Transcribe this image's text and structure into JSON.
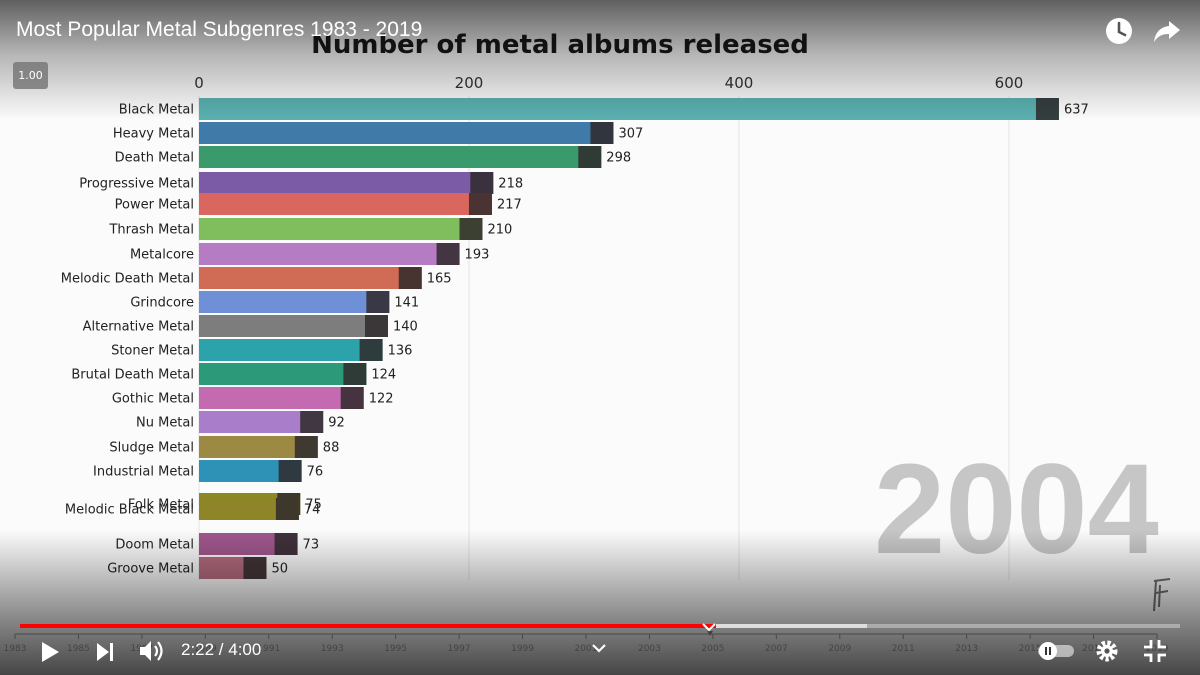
{
  "video": {
    "title": "Most Popular Metal Subgenres 1983 - 2019",
    "speed_badge": "1.00",
    "time": "2:22 / 4:00",
    "progress": 0.6,
    "buffered": 0.73
  },
  "chart_data": {
    "type": "bar",
    "orientation": "horizontal",
    "title": "Number of metal albums released",
    "xlabel": "",
    "ylabel": "",
    "xlim": [
      0,
      650
    ],
    "x_ticks": [
      0,
      200,
      400,
      600
    ],
    "grid": true,
    "year_label": "2004",
    "categories": [
      "Black Metal",
      "Heavy Metal",
      "Death Metal",
      "Progressive Metal",
      "Power Metal",
      "Thrash Metal",
      "Metalcore",
      "Melodic Death Metal",
      "Grindcore",
      "Alternative Metal",
      "Stoner Metal",
      "Brutal Death Metal",
      "Gothic Metal",
      "Nu Metal",
      "Sludge Metal",
      "Industrial Metal",
      "Folk Metal",
      "Melodic Black Metal",
      "Doom Metal",
      "Groove Metal"
    ],
    "values": [
      637,
      307,
      298,
      218,
      217,
      210,
      193,
      165,
      141,
      140,
      136,
      124,
      122,
      92,
      88,
      76,
      75,
      74,
      73,
      50
    ],
    "value_labels": [
      "637",
      "307",
      "298",
      "218",
      "217",
      "210",
      "193",
      "165",
      "141",
      "140",
      "136",
      "124",
      "122",
      "92",
      "88",
      "76",
      "75",
      "74",
      "73",
      "50"
    ],
    "colors": [
      "#5bb0b0",
      "#3f7aa8",
      "#3a9a6c",
      "#7b5aa6",
      "#d9675f",
      "#80bd5c",
      "#b57cc4",
      "#d06b55",
      "#6f8fd6",
      "#7d7d7d",
      "#2ca3aa",
      "#2c9a78",
      "#c46ab0",
      "#a97dc9",
      "#9c8a44",
      "#2e92b6",
      "#8a8a25",
      "#8e8428",
      "#a0578c",
      "#b46b7e"
    ],
    "timeline_years": [
      "1983",
      "1985",
      "1987",
      "1989",
      "1991",
      "1993",
      "1995",
      "1997",
      "1999",
      "2001",
      "2003",
      "2005",
      "2007",
      "2009",
      "2011",
      "2013",
      "2015",
      "2017",
      "2019"
    ]
  }
}
